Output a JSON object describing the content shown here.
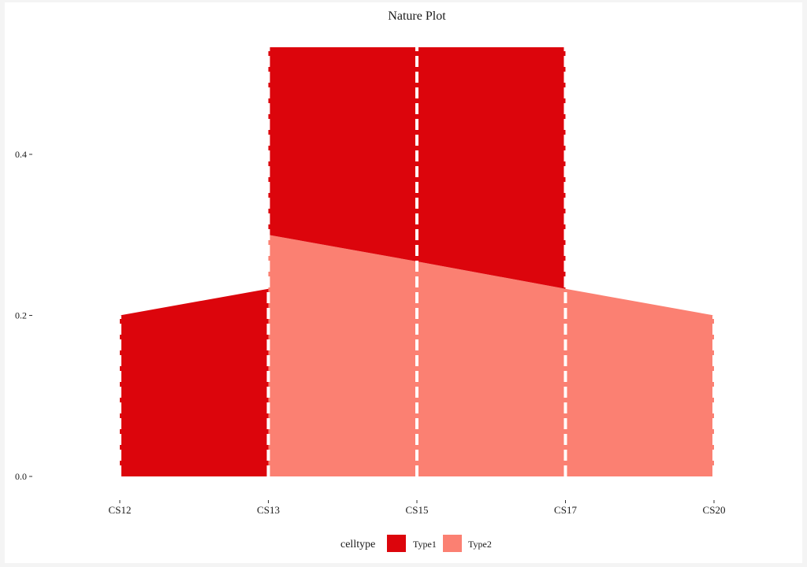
{
  "chart_data": {
    "type": "area",
    "title": "Nature Plot",
    "xlabel": "",
    "ylabel": "",
    "categories": [
      "CS12",
      "CS13",
      "CS15",
      "CS17",
      "CS20"
    ],
    "yticks": [
      "0.0",
      "0.2",
      "0.4"
    ],
    "ytick_values": [
      0,
      0.2,
      0.4
    ],
    "ylim": [
      0,
      0.533
    ],
    "grid": false,
    "stacked": true,
    "legend": {
      "title": "celltype",
      "position": "bottom",
      "entries": [
        "Type1",
        "Type2"
      ]
    },
    "colors": {
      "Type1": "#DC050C",
      "Type2": "#FB8072"
    },
    "areas": [
      {
        "series": "Type1",
        "points": [
          {
            "x": "CS12",
            "ymin": 0,
            "ymax": 0.2
          },
          {
            "x": "CS13",
            "ymin": 0,
            "ymax": 0.233
          }
        ]
      },
      {
        "series": "Type2",
        "points": [
          {
            "x": "CS13",
            "ymin": 0,
            "ymax": 0.3
          },
          {
            "x": "CS15",
            "ymin": 0,
            "ymax": 0.267
          },
          {
            "x": "CS17",
            "ymin": 0,
            "ymax": 0.233
          }
        ]
      },
      {
        "series": "Type1",
        "points": [
          {
            "x": "CS13",
            "ymin": 0.3,
            "ymax": 0.533
          },
          {
            "x": "CS15",
            "ymin": 0.267,
            "ymax": 0.533
          },
          {
            "x": "CS17",
            "ymin": 0.233,
            "ymax": 0.533
          }
        ]
      },
      {
        "series": "Type2",
        "points": [
          {
            "x": "CS17",
            "ymin": 0,
            "ymax": 0.233
          },
          {
            "x": "CS20",
            "ymin": 0,
            "ymax": 0.2
          }
        ]
      }
    ],
    "vlines": "white dashed at each category"
  }
}
